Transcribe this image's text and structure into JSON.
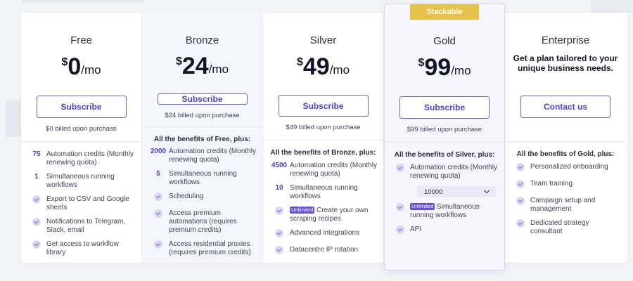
{
  "currency": "$",
  "per": "/mo",
  "plans": [
    {
      "name": "Free",
      "price": "0",
      "button": "Subscribe",
      "billed": "$0 billed upon purchase",
      "features": [
        {
          "lead": "75",
          "text": "Automation credits (Monthly renewing quota)"
        },
        {
          "lead": "1",
          "text": "Simultaneous running workflows"
        },
        {
          "lead": "check",
          "text": "Export to CSV and Google sheets"
        },
        {
          "lead": "check",
          "text": "Notifications to Telegram, Slack, email"
        },
        {
          "lead": "check",
          "text": "Get access to workflow library"
        }
      ]
    },
    {
      "name": "Bronze",
      "price": "24",
      "button": "Subscribe",
      "billed": "$24 billed upon purchase",
      "benefits_title": "All the benefits of Free, plus:",
      "features": [
        {
          "lead": "2000",
          "text": "Automation credits (Monthly renewing quota)"
        },
        {
          "lead": "5",
          "text": "Simultaneous running workflows"
        },
        {
          "lead": "check",
          "text": "Scheduling"
        },
        {
          "lead": "check",
          "text": "Access premium automations (requires premium credits)"
        },
        {
          "lead": "check",
          "text": "Access residential proxies (requires premium credits)"
        }
      ]
    },
    {
      "name": "Silver",
      "price": "49",
      "button": "Subscribe",
      "billed": "$49 billed upon purchase",
      "benefits_title": "All the benefits of Bronze, plus:",
      "features": [
        {
          "lead": "4500",
          "text": "Automation credits (Monthly renewing quota)"
        },
        {
          "lead": "10",
          "text": "Simultaneous running workflows"
        },
        {
          "lead": "check",
          "badge": "Unlimited",
          "text": "Create your own scraping recipes"
        },
        {
          "lead": "check",
          "text": "Advanced integrations"
        },
        {
          "lead": "check",
          "text": "Datacentre IP rotation"
        }
      ]
    },
    {
      "name": "Gold",
      "price": "99",
      "button": "Subscribe",
      "ribbon": "Stackable",
      "billed": "$99 billed upon purchase",
      "benefits_title": "All the benefits of Silver, plus:",
      "credits_text": "Automation credits (Monthly renewing quota)",
      "credits_select": "10000",
      "workflow_badge": "Unlimited",
      "workflow_text": "Simultaneous running workflows",
      "api_text": "API"
    },
    {
      "name": "Enterprise",
      "button": "Contact us",
      "tailor": "Get a plan tailored to your unique business needs.",
      "benefits_title": "All the benefits of Gold, plus:",
      "features": [
        {
          "lead": "check",
          "text": "Personalized onboarding"
        },
        {
          "lead": "check",
          "text": "Team training"
        },
        {
          "lead": "check",
          "text": "Campaign setup and management"
        },
        {
          "lead": "check",
          "text": "Dedicated strategy consultant"
        }
      ]
    }
  ]
}
